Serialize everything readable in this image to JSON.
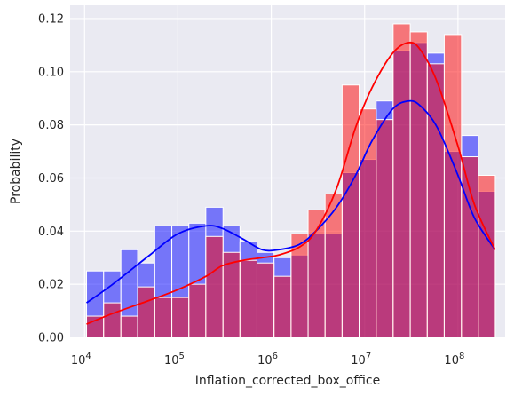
{
  "chart_data": {
    "type": "histogram",
    "xlabel": "Inflation_corrected_box_office",
    "ylabel": "Probability",
    "x_scale": "log",
    "xlim": [
      7000,
      320000000
    ],
    "ylim": [
      0,
      0.125
    ],
    "grid": true,
    "background": "#eaeaf2",
    "x_ticks": [
      {
        "base": "10",
        "exp": "4"
      },
      {
        "base": "10",
        "exp": "5"
      },
      {
        "base": "10",
        "exp": "6"
      },
      {
        "base": "10",
        "exp": "7"
      },
      {
        "base": "10",
        "exp": "8"
      }
    ],
    "y_ticks": [
      "0.00",
      "0.02",
      "0.04",
      "0.06",
      "0.08",
      "0.10",
      "0.12"
    ],
    "bin_edges": [
      10500,
      16000,
      24500,
      37000,
      56500,
      86000,
      131000,
      199000,
      304000,
      462000,
      703000,
      1070000,
      1630000,
      2480000,
      3770000,
      5740000,
      8740000,
      13300000,
      20200000,
      30800000,
      46900000,
      71300000,
      109000000,
      165000000,
      251000000
    ],
    "series": [
      {
        "color": "#0000ff",
        "hist": [
          0.025,
          0.025,
          0.033,
          0.028,
          0.042,
          0.042,
          0.043,
          0.049,
          0.042,
          0.036,
          0.032,
          0.03,
          0.031,
          0.039,
          0.039,
          0.062,
          0.067,
          0.089,
          0.108,
          0.111,
          0.107,
          0.07,
          0.076,
          0.055
        ],
        "kde_x": [
          10500,
          20000,
          50000,
          100000,
          200000,
          300000,
          500000,
          800000,
          1200000,
          2000000,
          3000000,
          5000000,
          8000000,
          12000000,
          20000000,
          30000000,
          40000000,
          60000000,
          100000000,
          150000000,
          250000000
        ],
        "kde_y": [
          0.013,
          0.02,
          0.031,
          0.039,
          0.042,
          0.041,
          0.037,
          0.033,
          0.033,
          0.035,
          0.04,
          0.049,
          0.061,
          0.074,
          0.086,
          0.089,
          0.087,
          0.079,
          0.061,
          0.045,
          0.033
        ]
      },
      {
        "color": "#ff0000",
        "hist": [
          0.008,
          0.013,
          0.008,
          0.019,
          0.015,
          0.015,
          0.02,
          0.038,
          0.032,
          0.029,
          0.028,
          0.023,
          0.039,
          0.048,
          0.054,
          0.095,
          0.086,
          0.082,
          0.118,
          0.115,
          0.103,
          0.114,
          0.068,
          0.061
        ],
        "kde_x": [
          10500,
          20000,
          50000,
          100000,
          200000,
          300000,
          500000,
          800000,
          1200000,
          2000000,
          3000000,
          5000000,
          8000000,
          12000000,
          20000000,
          30000000,
          40000000,
          60000000,
          100000000,
          150000000,
          250000000
        ],
        "kde_y": [
          0.005,
          0.009,
          0.014,
          0.018,
          0.023,
          0.027,
          0.029,
          0.03,
          0.031,
          0.034,
          0.04,
          0.056,
          0.079,
          0.094,
          0.107,
          0.111,
          0.108,
          0.096,
          0.072,
          0.05,
          0.033
        ]
      }
    ]
  }
}
